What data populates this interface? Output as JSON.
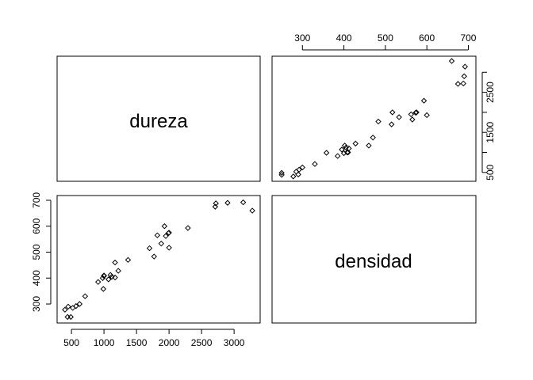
{
  "chart_data": {
    "type": "scatter",
    "subtype": "pairs-matrix",
    "variables": [
      "dureza",
      "densidad"
    ],
    "dureza_ticks": [
      300,
      400,
      500,
      600,
      700
    ],
    "densidad_ticks": [
      500,
      1000,
      1500,
      2000,
      2500,
      3000
    ],
    "densidad_ticks_right": [
      500,
      1500,
      2500
    ],
    "points": [
      {
        "dureza": 250,
        "densidad": 440
      },
      {
        "dureza": 250,
        "densidad": 490
      },
      {
        "dureza": 278,
        "densidad": 400
      },
      {
        "dureza": 285,
        "densidad": 520
      },
      {
        "dureza": 290,
        "densidad": 450
      },
      {
        "dureza": 292,
        "densidad": 570
      },
      {
        "dureza": 300,
        "densidad": 625
      },
      {
        "dureza": 330,
        "densidad": 710
      },
      {
        "dureza": 358,
        "densidad": 990
      },
      {
        "dureza": 385,
        "densidad": 910
      },
      {
        "dureza": 395,
        "densidad": 1070
      },
      {
        "dureza": 400,
        "densidad": 980
      },
      {
        "dureza": 402,
        "densidad": 1170
      },
      {
        "dureza": 405,
        "densidad": 1120
      },
      {
        "dureza": 408,
        "densidad": 1000
      },
      {
        "dureza": 410,
        "densidad": 1000
      },
      {
        "dureza": 412,
        "densidad": 1100
      },
      {
        "dureza": 428,
        "densidad": 1220
      },
      {
        "dureza": 460,
        "densidad": 1170
      },
      {
        "dureza": 470,
        "densidad": 1370
      },
      {
        "dureza": 483,
        "densidad": 1770
      },
      {
        "dureza": 515,
        "densidad": 1700
      },
      {
        "dureza": 517,
        "densidad": 2000
      },
      {
        "dureza": 533,
        "densidad": 1880
      },
      {
        "dureza": 562,
        "densidad": 1950
      },
      {
        "dureza": 565,
        "densidad": 1820
      },
      {
        "dureza": 573,
        "densidad": 1990
      },
      {
        "dureza": 575,
        "densidad": 2000
      },
      {
        "dureza": 593,
        "densidad": 2290
      },
      {
        "dureza": 600,
        "densidad": 1930
      },
      {
        "dureza": 660,
        "densidad": 3280
      },
      {
        "dureza": 675,
        "densidad": 2710
      },
      {
        "dureza": 688,
        "densidad": 2720
      },
      {
        "dureza": 690,
        "densidad": 2900
      },
      {
        "dureza": 692,
        "densidad": 3140
      }
    ],
    "dureza_range": [
      245,
      700
    ],
    "densidad_range": [
      395,
      3285
    ],
    "grid": false,
    "legend": "none"
  }
}
